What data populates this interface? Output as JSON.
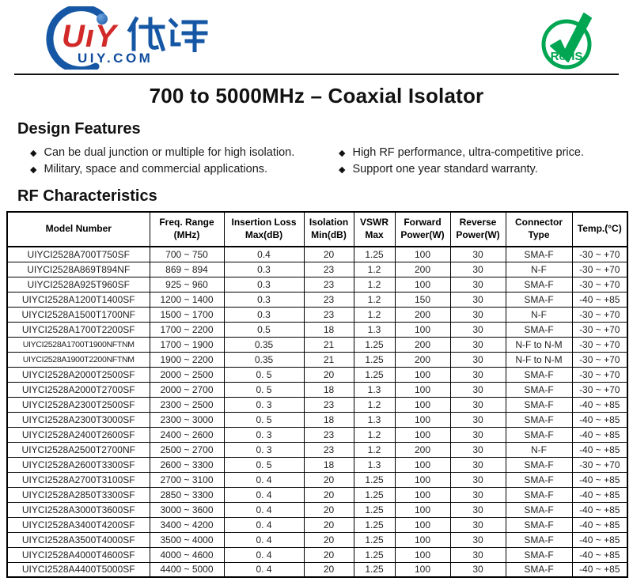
{
  "logo": {
    "brand_latin": "UıY",
    "brand_cn": "优译",
    "domain": "UIY.COM"
  },
  "rohs": {
    "label": "RoHS"
  },
  "title": "700 to 5000MHz – Coaxial Isolator",
  "design_features": {
    "heading": "Design Features",
    "bullet_glyph": "◆",
    "items_left": [
      "Can be dual junction or multiple for high isolation.",
      "Military, space and commercial applications."
    ],
    "items_right": [
      "High RF performance, ultra-competitive price.",
      "Support one year standard warranty."
    ]
  },
  "rf_characteristics": {
    "heading": "RF Characteristics",
    "columns": [
      {
        "lines": [
          "Model Number"
        ]
      },
      {
        "lines": [
          "Freq. Range",
          "(MHz)"
        ]
      },
      {
        "lines": [
          "Insertion Loss",
          "Max(dB)"
        ]
      },
      {
        "lines": [
          "Isolation",
          "Min(dB)"
        ]
      },
      {
        "lines": [
          "VSWR",
          "Max"
        ]
      },
      {
        "lines": [
          "Forward",
          "Power(W)"
        ]
      },
      {
        "lines": [
          "Reverse",
          "Power(W)"
        ]
      },
      {
        "lines": [
          "Connector",
          "Type"
        ]
      },
      {
        "lines": [
          "Temp.(°C)"
        ]
      }
    ],
    "rows": [
      [
        "UIYCI2528A700T750SF",
        "700 ~ 750",
        "0.4",
        "20",
        "1.25",
        "100",
        "30",
        "SMA-F",
        "-30 ~ +70"
      ],
      [
        "UIYCI2528A869T894NF",
        "869 ~ 894",
        "0.3",
        "23",
        "1.2",
        "200",
        "30",
        "N-F",
        "-30 ~ +70"
      ],
      [
        "UIYCI2528A925T960SF",
        "925 ~ 960",
        "0.3",
        "23",
        "1.2",
        "100",
        "30",
        "SMA-F",
        "-30 ~ +70"
      ],
      [
        "UIYCI2528A1200T1400SF",
        "1200 ~ 1400",
        "0.3",
        "23",
        "1.2",
        "150",
        "30",
        "SMA-F",
        "-40 ~ +85"
      ],
      [
        "UIYCI2528A1500T1700NF",
        "1500 ~ 1700",
        "0.3",
        "23",
        "1.2",
        "200",
        "30",
        "N-F",
        "-30 ~ +70"
      ],
      [
        "UIYCI2528A1700T2200SF",
        "1700 ~ 2200",
        "0.5",
        "18",
        "1.3",
        "100",
        "30",
        "SMA-F",
        "-30 ~ +70"
      ],
      [
        "UIYCI2528A1700T1900NFTNM",
        "1700 ~ 1900",
        "0.35",
        "21",
        "1.25",
        "200",
        "30",
        "N-F to N-M",
        "-30 ~ +70"
      ],
      [
        "UIYCI2528A1900T2200NFTNM",
        "1900 ~ 2200",
        "0.35",
        "21",
        "1.25",
        "200",
        "30",
        "N-F to N-M",
        "-30 ~ +70"
      ],
      [
        "UIYCI2528A2000T2500SF",
        "2000 ~ 2500",
        "0. 5",
        "20",
        "1.25",
        "100",
        "30",
        "SMA-F",
        "-30 ~ +70"
      ],
      [
        "UIYCI2528A2000T2700SF",
        "2000 ~ 2700",
        "0. 5",
        "18",
        "1.3",
        "100",
        "30",
        "SMA-F",
        "-30 ~ +70"
      ],
      [
        "UIYCI2528A2300T2500SF",
        "2300 ~ 2500",
        "0. 3",
        "23",
        "1.2",
        "100",
        "30",
        "SMA-F",
        "-40 ~ +85"
      ],
      [
        "UIYCI2528A2300T3000SF",
        "2300 ~ 3000",
        "0. 5",
        "18",
        "1.3",
        "100",
        "30",
        "SMA-F",
        "-40 ~ +85"
      ],
      [
        "UIYCI2528A2400T2600SF",
        "2400 ~ 2600",
        "0. 3",
        "23",
        "1.2",
        "100",
        "30",
        "SMA-F",
        "-40 ~ +85"
      ],
      [
        "UIYCI2528A2500T2700NF",
        "2500 ~ 2700",
        "0. 3",
        "23",
        "1.2",
        "200",
        "30",
        "N-F",
        "-40 ~ +85"
      ],
      [
        "UIYCI2528A2600T3300SF",
        "2600 ~ 3300",
        "0. 5",
        "18",
        "1.3",
        "100",
        "30",
        "SMA-F",
        "-30 ~ +70"
      ],
      [
        "UIYCI2528A2700T3100SF",
        "2700 ~ 3100",
        "0. 4",
        "20",
        "1.25",
        "100",
        "30",
        "SMA-F",
        "-40 ~ +85"
      ],
      [
        "UIYCI2528A2850T3300SF",
        "2850 ~ 3300",
        "0. 4",
        "20",
        "1.25",
        "100",
        "30",
        "SMA-F",
        "-40 ~ +85"
      ],
      [
        "UIYCI2528A3000T3600SF",
        "3000 ~ 3600",
        "0. 4",
        "20",
        "1.25",
        "100",
        "30",
        "SMA-F",
        "-40 ~ +85"
      ],
      [
        "UIYCI2528A3400T4200SF",
        "3400 ~ 4200",
        "0. 4",
        "20",
        "1.25",
        "100",
        "30",
        "SMA-F",
        "-40 ~ +85"
      ],
      [
        "UIYCI2528A3500T4000SF",
        "3500 ~ 4000",
        "0. 4",
        "20",
        "1.25",
        "100",
        "30",
        "SMA-F",
        "-40 ~ +85"
      ],
      [
        "UIYCI2528A4000T4600SF",
        "4000 ~ 4600",
        "0. 4",
        "20",
        "1.25",
        "100",
        "30",
        "SMA-F",
        "-40 ~ +85"
      ],
      [
        "UIYCI2528A4400T5000SF",
        "4400 ~ 5000",
        "0. 4",
        "20",
        "1.25",
        "100",
        "30",
        "SMA-F",
        "-40 ~ +85"
      ]
    ]
  },
  "colors": {
    "brand_red": "#d22a28",
    "brand_blue": "#1557a4",
    "brand_blue_dark": "#0f4c9c",
    "rohs_green": "#00a651",
    "table_border": "#000000",
    "text": "#1d1d1d"
  }
}
